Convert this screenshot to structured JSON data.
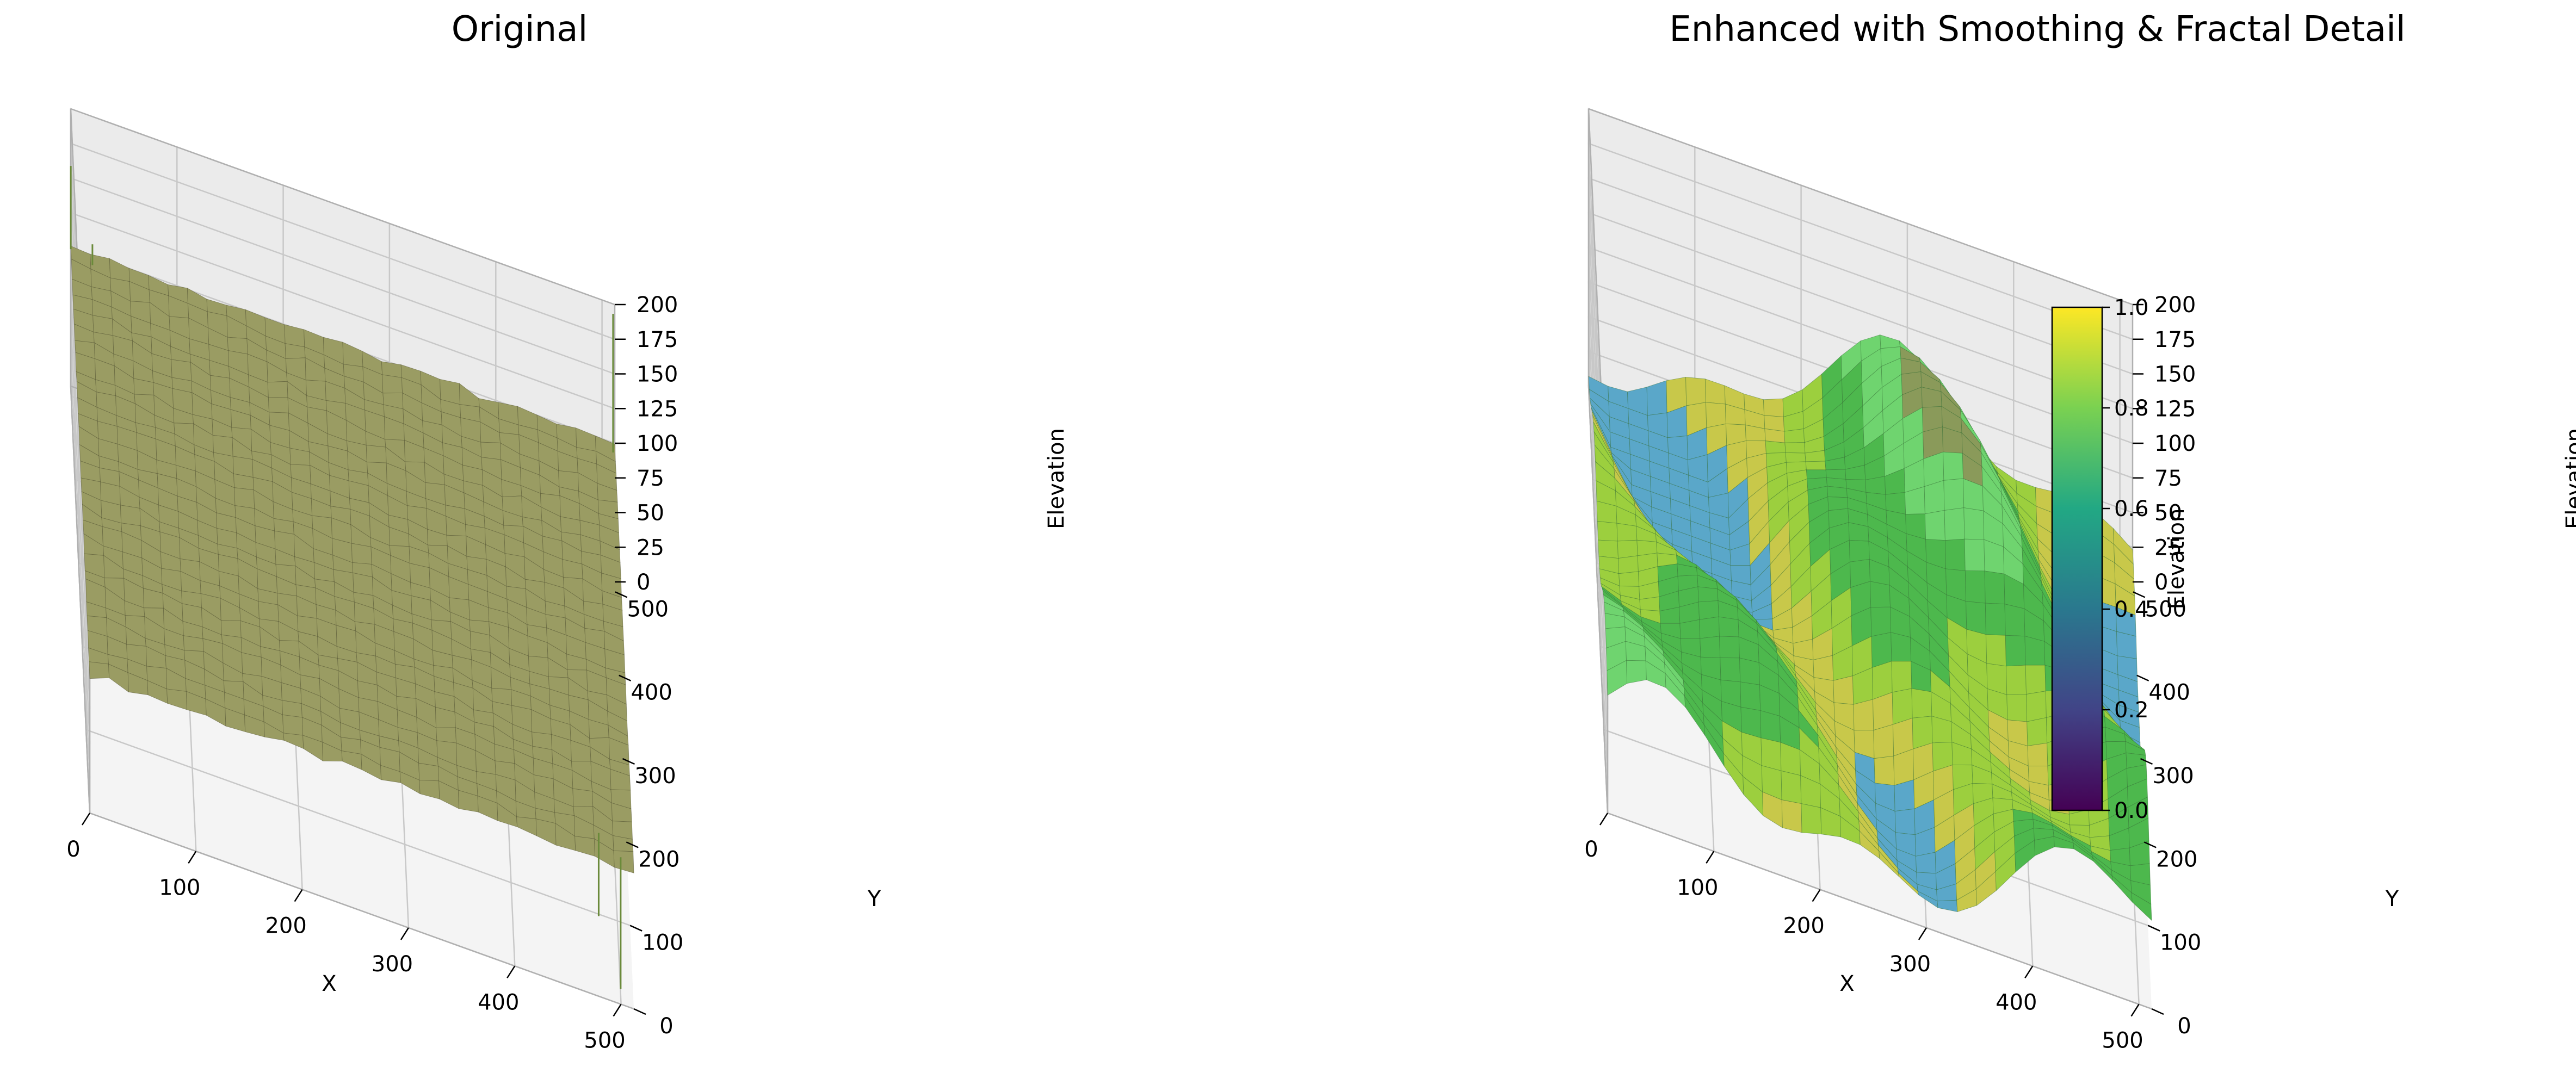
{
  "chart_data": [
    {
      "type": "surface",
      "title": "Original",
      "xlabel": "X",
      "ylabel": "Y",
      "zlabel": "Elevation",
      "xticks": [
        0,
        100,
        200,
        300,
        400,
        500
      ],
      "yticks": [
        0,
        100,
        200,
        300,
        400,
        500
      ],
      "zticks": [
        0,
        25,
        50,
        75,
        100,
        125,
        150,
        175,
        200
      ],
      "xlim": [
        0,
        512
      ],
      "ylim": [
        0,
        512
      ],
      "zlim": [
        0,
        200
      ],
      "surface_level": 100,
      "surface_color": "#9a9c63",
      "edge_color": "#4a4a2a",
      "spikes": [
        {
          "x": 0,
          "y": 510,
          "z": 160
        },
        {
          "x": 20,
          "y": 500,
          "z": 115
        },
        {
          "x": 500,
          "y": 10,
          "z": 5
        },
        {
          "x": 480,
          "y": 30,
          "z": 40
        },
        {
          "x": 510,
          "y": 500,
          "z": 200
        }
      ]
    },
    {
      "type": "surface",
      "title": "Enhanced with Smoothing & Fractal Detail",
      "xlabel": "X",
      "ylabel": "Y",
      "zlabel": "Elevation",
      "xticks": [
        0,
        100,
        200,
        300,
        400,
        500
      ],
      "yticks": [
        0,
        100,
        200,
        300,
        400,
        500
      ],
      "zticks": [
        0,
        25,
        50,
        75,
        100,
        125,
        150,
        175,
        200
      ],
      "xlim": [
        0,
        512
      ],
      "ylim": [
        0,
        512
      ],
      "zlim": [
        0,
        200
      ],
      "colormap": "terrain",
      "colorbar": {
        "label": "Elevation",
        "ticks": [
          "0.0",
          "0.2",
          "0.4",
          "0.6",
          "0.8",
          "1.0"
        ],
        "range": [
          0,
          1
        ],
        "colormap": "viridis"
      }
    }
  ]
}
